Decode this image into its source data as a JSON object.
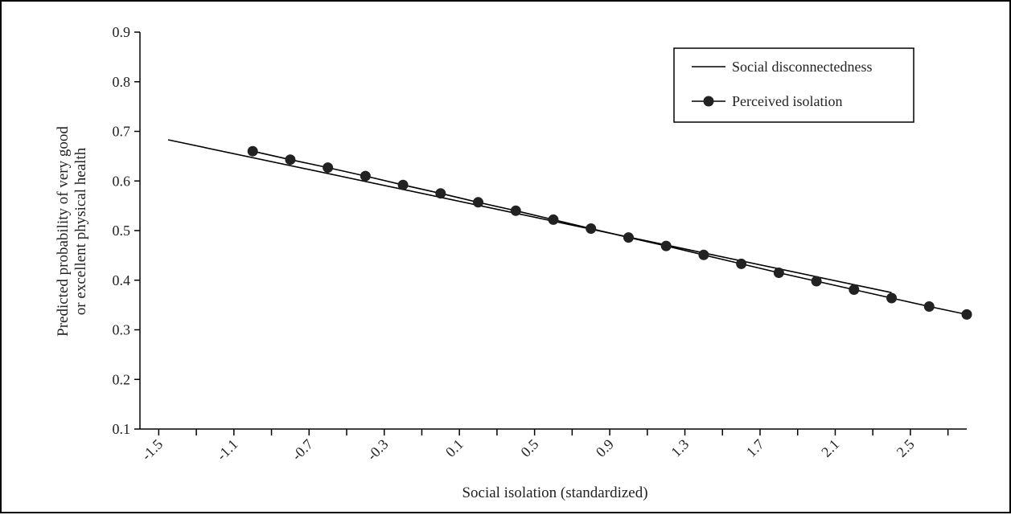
{
  "chart_data": {
    "type": "line",
    "title": "",
    "xlabel": "Social isolation (standardized)",
    "ylabel_lines": [
      "Predicted probability of very good",
      "or excellent physical health"
    ],
    "xlim": [
      -1.6,
      2.8
    ],
    "ylim": [
      0.1,
      0.9
    ],
    "x_ticks": [
      -1.5,
      -1.3,
      -1.1,
      -0.9,
      -0.7,
      -0.5,
      -0.3,
      -0.1,
      0.1,
      0.3,
      0.5,
      0.7,
      0.9,
      1.1,
      1.3,
      1.5,
      1.7,
      1.9,
      2.1,
      2.3,
      2.5,
      2.7
    ],
    "x_tick_labels": [
      "-1.5",
      "-1.1",
      "-0.7",
      "-0.3",
      "0.1",
      "0.5",
      "0.9",
      "1.3",
      "1.7",
      "2.1",
      "2.5"
    ],
    "x_tick_label_values": [
      -1.5,
      -1.1,
      -0.7,
      -0.3,
      0.1,
      0.5,
      0.9,
      1.3,
      1.7,
      2.1,
      2.5
    ],
    "y_ticks": [
      0.1,
      0.2,
      0.3,
      0.4,
      0.5,
      0.6,
      0.7,
      0.8,
      0.9
    ],
    "y_tick_labels": [
      "0.1",
      "0.2",
      "0.3",
      "0.4",
      "0.5",
      "0.6",
      "0.7",
      "0.8",
      "0.9"
    ],
    "grid": false,
    "legend_position": "top-right",
    "series": [
      {
        "name": "Social disconnectedness",
        "marker": "none",
        "x": [
          -1.45,
          2.4
        ],
        "y": [
          0.683,
          0.375
        ]
      },
      {
        "name": "Perceived isolation",
        "marker": "circle",
        "x": [
          -1.0,
          -0.8,
          -0.6,
          -0.4,
          -0.2,
          0.0,
          0.2,
          0.4,
          0.6,
          0.8,
          1.0,
          1.2,
          1.4,
          1.6,
          1.8,
          2.0,
          2.2,
          2.4,
          2.6,
          2.8
        ],
        "y": [
          0.66,
          0.643,
          0.627,
          0.61,
          0.592,
          0.575,
          0.557,
          0.54,
          0.522,
          0.504,
          0.486,
          0.469,
          0.451,
          0.433,
          0.415,
          0.398,
          0.381,
          0.364,
          0.347,
          0.331
        ]
      }
    ]
  }
}
